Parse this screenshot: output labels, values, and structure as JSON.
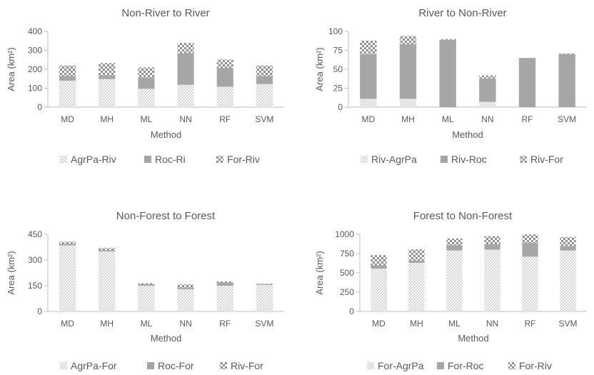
{
  "chart_data": [
    {
      "type": "bar",
      "stacked": true,
      "title": "Non-River to River",
      "xlabel": "Method",
      "ylabel": "Area (km²)",
      "categories": [
        "MD",
        "MH",
        "ML",
        "NN",
        "RF",
        "SVM"
      ],
      "ylim": [
        0,
        400
      ],
      "yticks": [
        0,
        100,
        200,
        300,
        400
      ],
      "legend": "bottom",
      "series": [
        {
          "name": "AgrPa-Riv",
          "pattern": "diagonal-hatch",
          "values": [
            140,
            148,
            97,
            118,
            108,
            122
          ]
        },
        {
          "name": "Roc-Ri",
          "pattern": "solid-gray",
          "values": [
            25,
            20,
            60,
            168,
            100,
            43
          ]
        },
        {
          "name": "For-Riv",
          "pattern": "checker",
          "values": [
            55,
            65,
            53,
            53,
            44,
            55
          ]
        }
      ]
    },
    {
      "type": "bar",
      "stacked": true,
      "title": "River to Non-River",
      "xlabel": "Method",
      "ylabel": "Area (km²)",
      "categories": [
        "MD",
        "MH",
        "ML",
        "NN",
        "RF",
        "SVM"
      ],
      "ylim": [
        0,
        100
      ],
      "yticks": [
        0,
        25,
        50,
        75,
        100
      ],
      "legend": "bottom",
      "series": [
        {
          "name": "Riv-AgrPa",
          "pattern": "diagonal-hatch",
          "values": [
            11,
            11,
            0,
            7,
            0,
            0
          ]
        },
        {
          "name": "Riv-Roc",
          "pattern": "solid-gray",
          "values": [
            59,
            72,
            89,
            31,
            65,
            70
          ]
        },
        {
          "name": "Riv-For",
          "pattern": "checker",
          "values": [
            18,
            11,
            1,
            4,
            0,
            1
          ]
        }
      ]
    },
    {
      "type": "bar",
      "stacked": true,
      "title": "Non-Forest to Forest",
      "xlabel": "Method",
      "ylabel": "Area (km²)",
      "categories": [
        "MD",
        "MH",
        "ML",
        "NN",
        "RF",
        "SVM"
      ],
      "ylim": [
        0,
        450
      ],
      "yticks": [
        0,
        150,
        300,
        450
      ],
      "legend": "bottom",
      "series": [
        {
          "name": "AgrPa-For",
          "pattern": "diagonal-hatch",
          "values": [
            385,
            350,
            150,
            130,
            150,
            155
          ]
        },
        {
          "name": "Roc-For",
          "pattern": "solid-gray",
          "values": [
            10,
            8,
            10,
            10,
            20,
            5
          ]
        },
        {
          "name": "Riv-For",
          "pattern": "checker",
          "values": [
            12,
            12,
            5,
            18,
            5,
            2
          ]
        }
      ]
    },
    {
      "type": "bar",
      "stacked": true,
      "title": "Forest to Non-Forest",
      "xlabel": "Method",
      "ylabel": "Area (km²)",
      "categories": [
        "MD",
        "MH",
        "ML",
        "NN",
        "RF",
        "SVM"
      ],
      "ylim": [
        0,
        1000
      ],
      "yticks": [
        0,
        250,
        500,
        750,
        1000
      ],
      "legend": "bottom",
      "series": [
        {
          "name": "For-AgrPa",
          "pattern": "diagonal-hatch",
          "values": [
            555,
            630,
            790,
            800,
            710,
            790
          ]
        },
        {
          "name": "For-Roc",
          "pattern": "solid-gray",
          "values": [
            45,
            30,
            70,
            70,
            180,
            60
          ]
        },
        {
          "name": "For-Riv",
          "pattern": "checker",
          "values": [
            130,
            145,
            85,
            105,
            110,
            115
          ]
        }
      ]
    }
  ]
}
